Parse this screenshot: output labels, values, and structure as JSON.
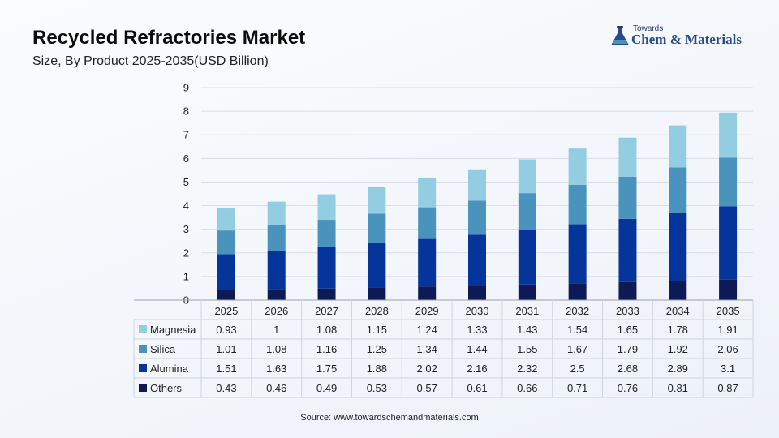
{
  "header": {
    "title": "Recycled Refractories Market",
    "subtitle": "Size, By Product 2025-2035(USD Billion)"
  },
  "logo": {
    "top_text": "Towards",
    "main_text": "Chem & Materials",
    "icon": "flask-icon"
  },
  "source": "Source: www.towardschemandmaterials.com",
  "chart_data": {
    "type": "bar",
    "stacked": true,
    "title": "Recycled Refractories Market",
    "subtitle": "Size, By Product 2025-2035(USD Billion)",
    "xlabel": "",
    "ylabel": "",
    "categories": [
      "2025",
      "2026",
      "2027",
      "2028",
      "2029",
      "2030",
      "2031",
      "2032",
      "2033",
      "2034",
      "2035"
    ],
    "ylim": [
      0,
      9
    ],
    "yticks": [
      0,
      1,
      2,
      3,
      4,
      5,
      6,
      7,
      8,
      9
    ],
    "grid": true,
    "legend": "data-table",
    "series": [
      {
        "name": "Magnesia",
        "color": "#92cde1",
        "values": [
          0.93,
          1,
          1.08,
          1.15,
          1.24,
          1.33,
          1.43,
          1.54,
          1.65,
          1.78,
          1.91
        ]
      },
      {
        "name": "Silica",
        "color": "#4a93bd",
        "values": [
          1.01,
          1.08,
          1.16,
          1.25,
          1.34,
          1.44,
          1.55,
          1.67,
          1.79,
          1.92,
          2.06
        ]
      },
      {
        "name": "Alumina",
        "color": "#05349a",
        "values": [
          1.51,
          1.63,
          1.75,
          1.88,
          2.02,
          2.16,
          2.32,
          2.5,
          2.68,
          2.89,
          3.1
        ]
      },
      {
        "name": "Others",
        "color": "#0d1a55",
        "values": [
          0.43,
          0.46,
          0.49,
          0.53,
          0.57,
          0.61,
          0.66,
          0.71,
          0.76,
          0.81,
          0.87
        ]
      }
    ]
  }
}
